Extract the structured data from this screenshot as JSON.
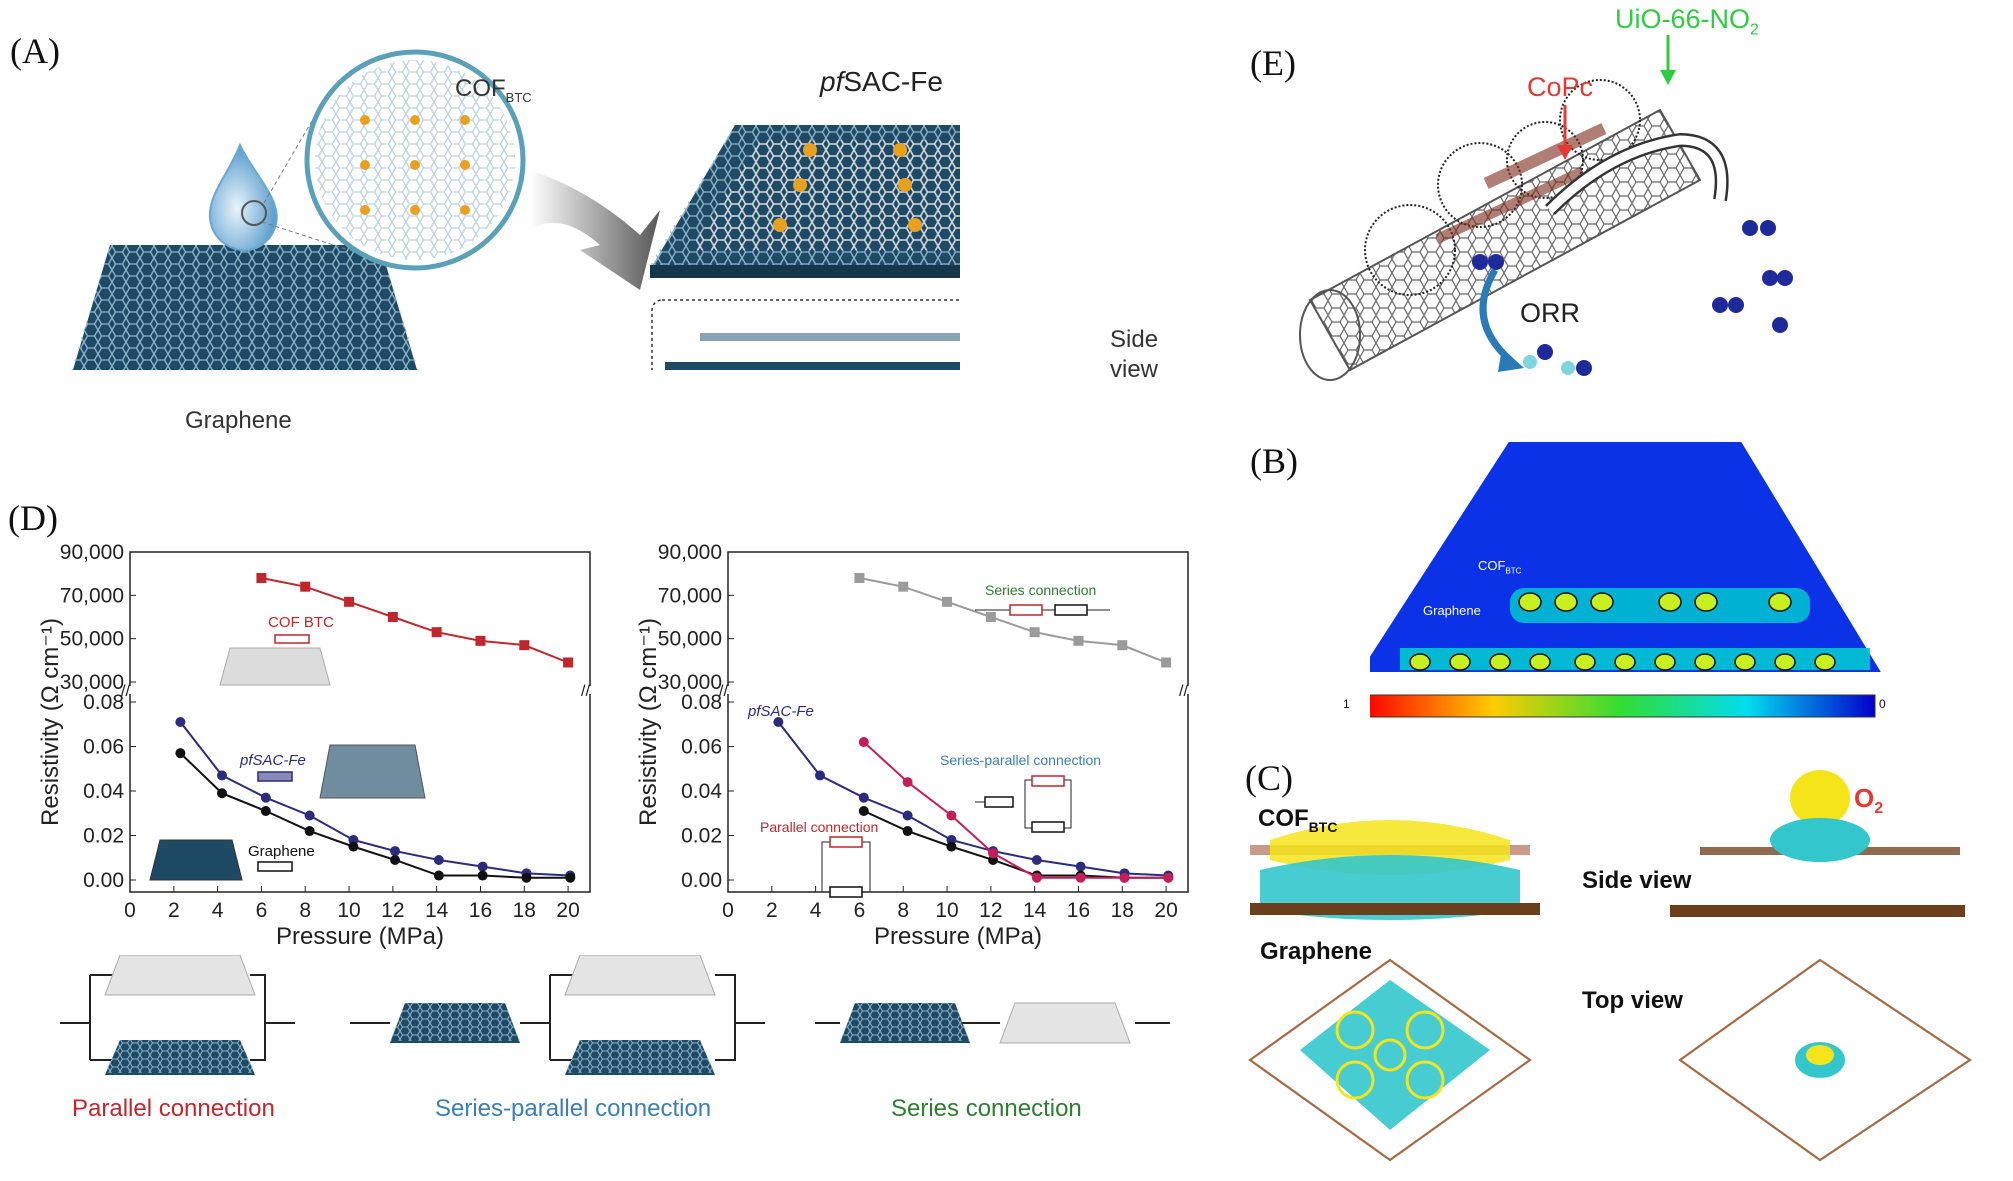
{
  "panels": {
    "A": {
      "letter": "(A)",
      "cof_label": "COF",
      "cof_sub": "BTC",
      "product_title_italic": "pf",
      "product_title_rest": "SAC-Fe",
      "side_view_line1": "Side",
      "side_view_line2": "view",
      "graphene_label": "Graphene"
    },
    "E": {
      "letter": "(E)",
      "uio_label": "UiO-66-NO",
      "uio_sub": "2",
      "copc_label": "CoPc",
      "orr_label": "ORR"
    },
    "B": {
      "letter": "(B)",
      "cof_label": "COF",
      "cof_sub": "BTC",
      "graphene_label": "Graphene",
      "scale_min": "1",
      "scale_max": "0"
    },
    "C": {
      "letter": "(C)",
      "cof_label": "COF",
      "cof_sub": "BTC",
      "o2_label": "O",
      "o2_sub": "2",
      "side_view": "Side view",
      "graphene_label": "Graphene",
      "top_view": "Top view"
    },
    "D": {
      "letter": "(D)",
      "bottom_labels": [
        "Parallel connection",
        "Series-parallel connection",
        "Series connection"
      ],
      "colors": {
        "red": "#c0272d",
        "navy": "#2b2c7c",
        "black": "#111111",
        "gray": "#9b9b9b",
        "magenta": "#c41e5a",
        "parallel_text": "#c0272d",
        "series_parallel_text": "#3b7fb5",
        "series_text": "#2e7d32"
      }
    }
  },
  "chart_data": [
    {
      "type": "line",
      "xlabel": "Pressure (MPa)",
      "ylabel": "Resistivity (Ω cm⁻¹)",
      "xlim": [
        0,
        21
      ],
      "xticks": [
        "0",
        "2",
        "4",
        "6",
        "8",
        "10",
        "12",
        "14",
        "16",
        "18",
        "20"
      ],
      "yticks_upper": [
        "30,000",
        "50,000",
        "70,000",
        "90,000"
      ],
      "yticks_lower": [
        "0.00",
        "0.02",
        "0.04",
        "0.06",
        "0.08"
      ],
      "ylim_upper": [
        30000,
        90000
      ],
      "ylim_lower": [
        0,
        0.08
      ],
      "series": [
        {
          "name": "COFBTC",
          "color": "#c0272d",
          "axis": "upper",
          "x": [
            6,
            8,
            10,
            12,
            14,
            16,
            18,
            20
          ],
          "y": [
            78000,
            74000,
            67000,
            60000,
            53000,
            49000,
            47000,
            39000
          ]
        },
        {
          "name": "pfSAC-Fe",
          "color": "#2b2c7c",
          "axis": "lower",
          "x": [
            2.3,
            4.2,
            6.2,
            8.2,
            10.2,
            12.1,
            14.1,
            16.1,
            18.1,
            20.1
          ],
          "y": [
            0.071,
            0.047,
            0.037,
            0.029,
            0.018,
            0.013,
            0.009,
            0.006,
            0.003,
            0.002
          ]
        },
        {
          "name": "Graphene",
          "color": "#111111",
          "axis": "lower",
          "x": [
            2.3,
            4.2,
            6.2,
            8.2,
            10.2,
            12.1,
            14.1,
            16.1,
            18.1,
            20.1
          ],
          "y": [
            0.057,
            0.039,
            0.031,
            0.022,
            0.015,
            0.009,
            0.002,
            0.002,
            0.001,
            0.001
          ]
        }
      ],
      "annotations": {
        "cof": "COF",
        "cof_sub": "BTC",
        "pf_italic": "pf",
        "pf_rest": "SAC-Fe",
        "graphene": "Graphene"
      }
    },
    {
      "type": "line",
      "xlabel": "Pressure (MPa)",
      "ylabel": "Resistivity (Ω cm⁻¹)",
      "xlim": [
        0,
        21
      ],
      "xticks": [
        "0",
        "2",
        "4",
        "6",
        "8",
        "10",
        "12",
        "14",
        "16",
        "18",
        "20"
      ],
      "yticks_upper": [
        "30,000",
        "50,000",
        "70,000",
        "90,000"
      ],
      "yticks_lower": [
        "0.00",
        "0.02",
        "0.04",
        "0.06",
        "0.08"
      ],
      "ylim_upper": [
        30000,
        90000
      ],
      "ylim_lower": [
        0,
        0.08
      ],
      "series": [
        {
          "name": "Series connection",
          "color": "#9b9b9b",
          "axis": "upper",
          "x": [
            6,
            8,
            10,
            12,
            14,
            16,
            18,
            20
          ],
          "y": [
            78000,
            74000,
            67000,
            60000,
            53000,
            49000,
            47000,
            39000
          ]
        },
        {
          "name": "pfSAC-Fe",
          "color": "#2b2c7c",
          "axis": "lower",
          "x": [
            2.3,
            4.2,
            6.2,
            8.2,
            10.2,
            12.1,
            14.1,
            16.1,
            18.1,
            20.1
          ],
          "y": [
            0.071,
            0.047,
            0.037,
            0.029,
            0.018,
            0.013,
            0.009,
            0.006,
            0.003,
            0.002
          ]
        },
        {
          "name": "Graphene",
          "color": "#111111",
          "axis": "lower",
          "x": [
            6.2,
            8.2,
            10.2,
            12.1,
            14.1,
            16.1,
            18.1,
            20.1
          ],
          "y": [
            0.031,
            0.022,
            0.015,
            0.009,
            0.002,
            0.002,
            0.001,
            0.001
          ]
        },
        {
          "name": "Series-parallel connection",
          "color": "#c41e5a",
          "axis": "lower",
          "x": [
            6.2,
            8.2,
            10.2,
            12.1,
            14.1,
            16.1,
            18.1,
            20.1
          ],
          "y": [
            0.062,
            0.044,
            0.029,
            0.012,
            0.001,
            0.001,
            0.001,
            0.001
          ]
        }
      ],
      "annotations": {
        "series": "Series connection",
        "series_parallel": "Series-parallel connection",
        "parallel": "Parallel connection",
        "pf_italic": "pf",
        "pf_rest": "SAC-Fe"
      }
    }
  ]
}
